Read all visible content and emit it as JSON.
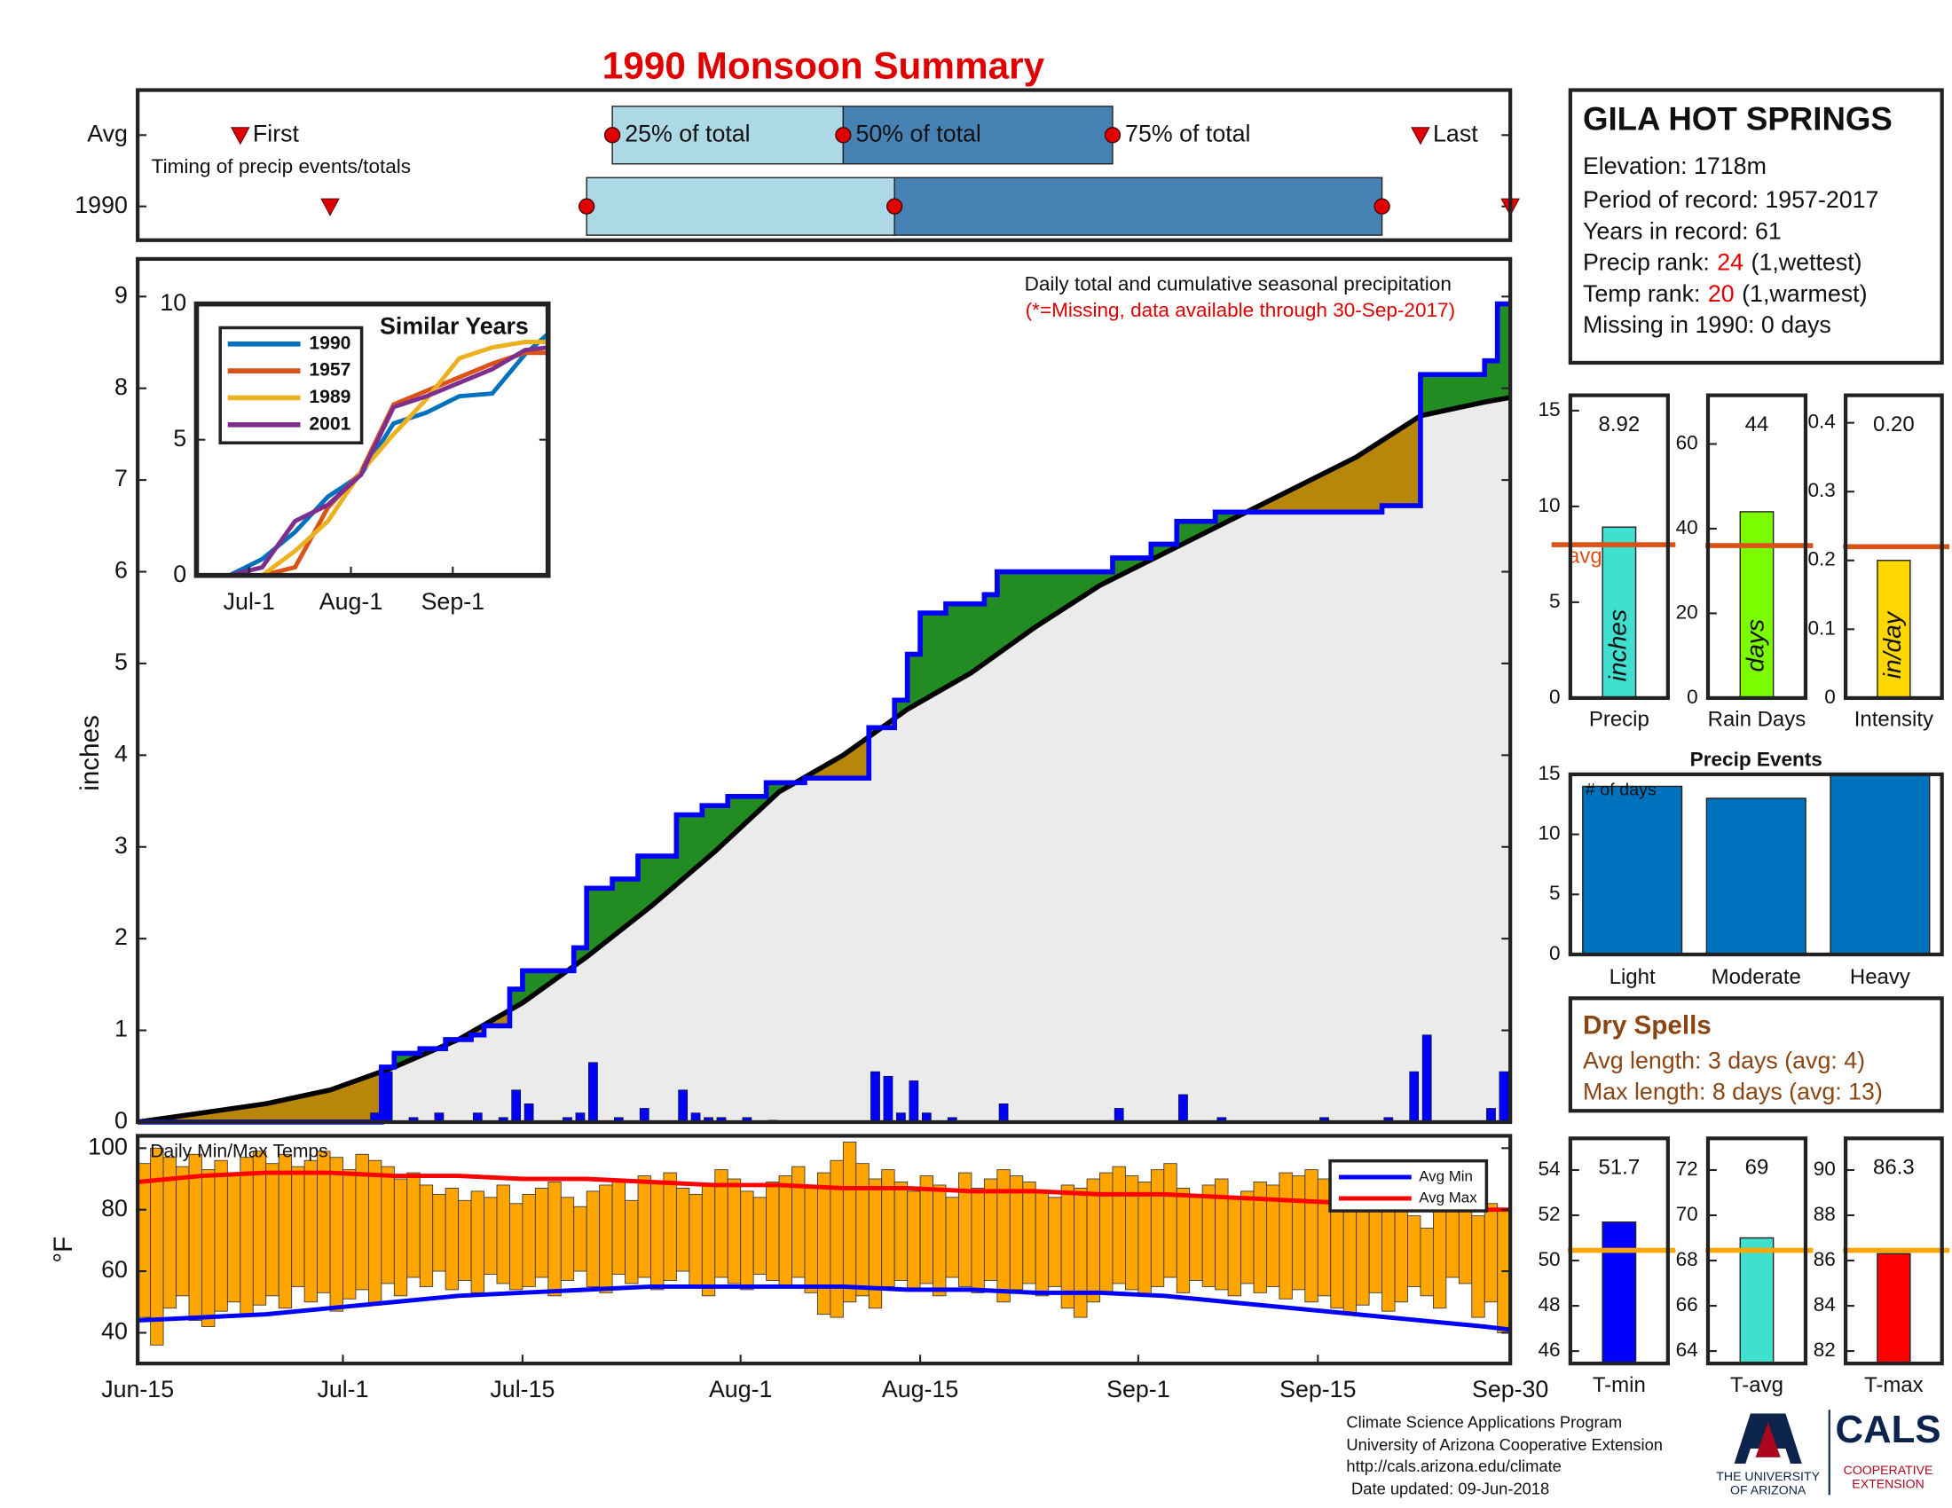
{
  "title": "1990 Monsoon Summary",
  "station": {
    "name": "GILA HOT SPRINGS",
    "elevation": "Elevation: 1718m",
    "period": "Period of record: 1957-2017",
    "years": "Years in record: 61",
    "precip_rank_label": "Precip rank:",
    "precip_rank": "24",
    "precip_rank_note": "(1,wettest)",
    "temp_rank_label": "Temp rank:",
    "temp_rank": "20",
    "temp_rank_note": "(1,warmest)",
    "missing": "Missing in 1990: 0 days"
  },
  "dry_spells": {
    "title": "Dry Spells",
    "avg_length": "Avg length: 3 days (avg: 4)",
    "max_length": "Max length: 8 days (avg: 13)"
  },
  "footer": {
    "lines": [
      "Climate Science Applications Program",
      "University of Arizona Cooperative Extension",
      "http://cals.arizona.edu/climate",
      "Date updated: 09-Jun-2018"
    ],
    "logo_university": [
      "THE UNIVERSITY",
      "OF ARIZONA"
    ],
    "logo_cals": "CALS",
    "logo_extension": [
      "COOPERATIVE",
      "EXTENSION"
    ]
  },
  "chart_data": [
    {
      "type": "timing",
      "annotation": "Timing of precip events/totals",
      "marker_labels": [
        "First",
        "25% of total",
        "50% of total",
        "75% of total",
        "Last"
      ],
      "series": [
        {
          "name": "Avg",
          "values": [
            8,
            37,
            55,
            76,
            100
          ]
        },
        {
          "name": "1990",
          "values": [
            15,
            35,
            59,
            97,
            107
          ]
        }
      ],
      "xlim": [
        0,
        107
      ],
      "colors": [
        "#add8e6",
        "#4682b4"
      ],
      "marker_color": "#e00000"
    },
    {
      "type": "cumulative_precip",
      "annotation": "Daily total and cumulative seasonal precipitation",
      "note": "(*=Missing, data available through 30-Sep-2017)",
      "ylabel": "inches",
      "xlim": [
        0,
        107
      ],
      "ylim": [
        0,
        9.41
      ],
      "yticks": [
        0,
        1,
        2,
        3,
        4,
        5,
        6,
        7,
        8,
        9
      ],
      "daily": {
        "color": "#0000ff",
        "x": [
          18,
          19,
          21,
          23,
          26,
          28,
          29,
          30,
          33,
          34,
          35,
          37,
          39,
          42,
          43,
          44,
          45,
          47,
          49,
          57,
          58,
          59,
          60,
          61,
          63,
          67,
          76,
          81,
          84,
          92,
          97,
          99,
          100,
          105,
          106
        ],
        "values": [
          0.1,
          0.55,
          0.05,
          0.1,
          0.1,
          0.05,
          0.35,
          0.2,
          0.05,
          0.1,
          0.65,
          0.05,
          0.15,
          0.35,
          0.1,
          0.05,
          0.05,
          0.05,
          0.02,
          0.55,
          0.5,
          0.1,
          0.45,
          0.1,
          0.05,
          0.2,
          0.15,
          0.3,
          0.05,
          0.05,
          0.05,
          0.55,
          0.95,
          0.15,
          0.55
        ]
      },
      "observed": {
        "color": "#0000ff",
        "x": [
          0,
          19,
          20,
          22,
          24,
          26,
          27,
          29,
          30,
          34,
          35,
          37,
          39,
          42,
          44,
          46,
          49,
          52,
          57,
          59,
          60,
          61,
          63,
          66,
          67,
          76,
          79,
          81,
          84,
          97,
          100,
          105,
          106
        ],
        "values": [
          0,
          0.6,
          0.75,
          0.8,
          0.9,
          0.95,
          1.05,
          1.45,
          1.65,
          1.9,
          2.55,
          2.65,
          2.9,
          3.35,
          3.45,
          3.55,
          3.7,
          3.75,
          4.3,
          4.6,
          5.1,
          5.55,
          5.65,
          5.75,
          6.0,
          6.15,
          6.3,
          6.55,
          6.65,
          6.72,
          8.15,
          8.3,
          8.92
        ]
      },
      "average": {
        "color": "#000000",
        "x": [
          0,
          5,
          10,
          15,
          20,
          25,
          30,
          35,
          40,
          45,
          50,
          55,
          60,
          65,
          70,
          75,
          80,
          85,
          90,
          95,
          100,
          105,
          107
        ],
        "values": [
          0,
          0.1,
          0.2,
          0.35,
          0.6,
          0.9,
          1.3,
          1.8,
          2.35,
          2.95,
          3.6,
          4.0,
          4.5,
          4.9,
          5.4,
          5.85,
          6.2,
          6.55,
          6.9,
          7.25,
          7.7,
          7.85,
          7.9
        ]
      },
      "colors": {
        "above": "#228b22",
        "below": "#b8860b",
        "base": "#ebebeb"
      }
    },
    {
      "type": "line",
      "title": "Similar Years",
      "x": [
        0,
        10,
        20,
        30,
        40,
        50,
        60,
        70,
        80,
        90,
        100,
        107
      ],
      "xlim": [
        0,
        107
      ],
      "ylim": [
        0,
        10
      ],
      "yticks": [
        0,
        5,
        10
      ],
      "xticks": [
        {
          "value": 16,
          "label": "Jul-1"
        },
        {
          "value": 47,
          "label": "Aug-1"
        },
        {
          "value": 78,
          "label": "Sep-1"
        }
      ],
      "series": [
        {
          "name": "1990",
          "color": "#0072bd",
          "values": [
            0,
            0,
            0.6,
            1.6,
            2.9,
            3.7,
            5.6,
            6.0,
            6.6,
            6.7,
            8.15,
            8.9
          ]
        },
        {
          "name": "1957",
          "color": "#d95319",
          "values": [
            0,
            0,
            0,
            0.3,
            2.5,
            3.8,
            6.3,
            6.8,
            7.3,
            7.8,
            8.2,
            8.2
          ]
        },
        {
          "name": "1989",
          "color": "#edb120",
          "values": [
            0,
            0,
            0,
            0.9,
            2.0,
            3.8,
            5.2,
            6.5,
            8.0,
            8.4,
            8.6,
            8.6
          ]
        },
        {
          "name": "2001",
          "color": "#7e2f8e",
          "values": [
            0,
            0,
            0.3,
            2.0,
            2.6,
            3.7,
            6.2,
            6.6,
            7.1,
            7.6,
            8.3,
            8.4
          ]
        }
      ]
    },
    {
      "type": "temp_range",
      "title": "Daily Min/Max Temps",
      "ylabel": "°F",
      "xlim": [
        0,
        107
      ],
      "ylim": [
        30,
        104
      ],
      "yticks": [
        40,
        60,
        80,
        100
      ],
      "xticks": [
        {
          "value": 0,
          "label": "Jun-15"
        },
        {
          "value": 16,
          "label": "Jul-1"
        },
        {
          "value": 30,
          "label": "Jul-15"
        },
        {
          "value": 47,
          "label": "Aug-1"
        },
        {
          "value": 61,
          "label": "Aug-15"
        },
        {
          "value": 78,
          "label": "Sep-1"
        },
        {
          "value": 92,
          "label": "Sep-15"
        },
        {
          "value": 107,
          "label": "Sep-30"
        }
      ],
      "bar_color": "#ffa500",
      "x": [
        0,
        1,
        2,
        3,
        4,
        5,
        6,
        7,
        8,
        9,
        10,
        11,
        12,
        13,
        14,
        15,
        16,
        17,
        18,
        19,
        20,
        21,
        22,
        23,
        24,
        25,
        26,
        27,
        28,
        29,
        30,
        31,
        32,
        33,
        34,
        35,
        36,
        37,
        38,
        39,
        40,
        41,
        42,
        43,
        44,
        45,
        46,
        47,
        48,
        49,
        50,
        51,
        52,
        53,
        54,
        55,
        56,
        57,
        58,
        59,
        60,
        61,
        62,
        63,
        64,
        65,
        66,
        67,
        68,
        69,
        70,
        71,
        72,
        73,
        74,
        75,
        76,
        77,
        78,
        79,
        80,
        81,
        82,
        83,
        84,
        85,
        86,
        87,
        88,
        89,
        90,
        91,
        92,
        93,
        94,
        95,
        96,
        97,
        98,
        99,
        100,
        101,
        102,
        103,
        104,
        105,
        106
      ],
      "max": {
        "values": [
          95,
          100,
          97,
          94,
          98,
          93,
          96,
          92,
          97,
          99,
          95,
          98,
          94,
          96,
          99,
          97,
          93,
          98,
          96,
          94,
          90,
          92,
          88,
          85,
          87,
          83,
          86,
          84,
          88,
          82,
          85,
          87,
          89,
          84,
          81,
          86,
          88,
          90,
          83,
          91,
          89,
          92,
          87,
          85,
          88,
          93,
          90,
          86,
          84,
          89,
          91,
          94,
          88,
          92,
          96,
          102,
          95,
          90,
          93,
          89,
          86,
          91,
          88,
          84,
          92,
          87,
          90,
          93,
          91,
          89,
          86,
          84,
          88,
          87,
          90,
          92,
          94,
          91,
          89,
          93,
          95,
          87,
          85,
          88,
          90,
          84,
          86,
          89,
          88,
          92,
          91,
          93,
          90,
          87,
          85,
          88,
          86,
          83,
          80,
          78,
          74,
          82,
          84,
          80,
          78,
          82,
          80
        ]
      },
      "min": {
        "values": [
          45,
          36,
          48,
          52,
          44,
          42,
          47,
          50,
          46,
          49,
          52,
          48,
          55,
          50,
          53,
          47,
          51,
          54,
          49,
          56,
          52,
          58,
          55,
          60,
          54,
          57,
          53,
          59,
          56,
          54,
          55,
          58,
          52,
          57,
          60,
          55,
          53,
          59,
          56,
          58,
          54,
          57,
          60,
          55,
          52,
          58,
          56,
          54,
          59,
          57,
          55,
          58,
          53,
          46,
          45,
          50,
          52,
          48,
          55,
          57,
          54,
          56,
          52,
          58,
          55,
          53,
          57,
          50,
          54,
          56,
          52,
          55,
          48,
          45,
          50,
          53,
          56,
          54,
          52,
          55,
          58,
          53,
          57,
          55,
          54,
          52,
          56,
          53,
          55,
          51,
          54,
          50,
          52,
          48,
          46,
          49,
          53,
          47,
          50,
          55,
          52,
          48,
          58,
          56,
          45,
          50,
          40
        ]
      },
      "series": [
        {
          "name": "Avg Min",
          "color": "#0000ff",
          "x": [
            0,
            5,
            10,
            15,
            20,
            25,
            30,
            35,
            40,
            45,
            50,
            55,
            60,
            65,
            70,
            75,
            80,
            85,
            90,
            95,
            100,
            105,
            107
          ],
          "values": [
            44,
            45,
            46,
            48,
            50,
            52,
            53,
            54,
            55,
            55,
            55,
            55,
            54,
            54,
            53,
            53,
            52,
            50,
            48,
            46,
            44,
            42,
            41
          ]
        },
        {
          "name": "Avg Max",
          "color": "#ff0000",
          "x": [
            0,
            5,
            10,
            15,
            20,
            25,
            30,
            35,
            40,
            45,
            50,
            55,
            60,
            65,
            70,
            75,
            80,
            85,
            90,
            95,
            100,
            105,
            107
          ],
          "values": [
            89,
            91,
            92,
            92,
            91,
            91,
            90,
            90,
            89,
            88,
            88,
            87,
            87,
            86,
            86,
            85,
            85,
            84,
            83,
            82,
            81,
            80,
            80
          ]
        }
      ]
    },
    {
      "type": "stat_bar",
      "categories": [
        "Precip"
      ],
      "values": [
        8.92
      ],
      "avg": 8.0,
      "avg_label": "avg",
      "unit_label": "inches",
      "color": "#40e0d0",
      "avg_color": "#d95319",
      "ylim": [
        0,
        15.8
      ],
      "yticks": [
        0,
        5,
        10,
        15
      ]
    },
    {
      "type": "stat_bar",
      "categories": [
        "Rain Days"
      ],
      "values": [
        44
      ],
      "avg": 36,
      "unit_label": "days",
      "color": "#7cfc00",
      "avg_color": "#d95319",
      "ylim": [
        0,
        71.5
      ],
      "yticks": [
        0,
        20,
        40,
        60
      ]
    },
    {
      "type": "stat_bar",
      "categories": [
        "Intensity"
      ],
      "values": [
        0.2
      ],
      "value_labels": [
        "0.20"
      ],
      "avg": 0.22,
      "unit_label": "in/day",
      "color": "#ffd700",
      "avg_color": "#d95319",
      "ylim": [
        0,
        0.44
      ],
      "yticks": [
        0,
        0.1,
        0.2,
        0.3,
        0.4
      ]
    },
    {
      "type": "bar",
      "title": "Precip Events",
      "annotation": "# of days",
      "categories": [
        "Light",
        "Moderate",
        "Heavy"
      ],
      "values": [
        14,
        13,
        15
      ],
      "color": "#0072bd",
      "ylim": [
        0,
        15
      ],
      "yticks": [
        0,
        5,
        10,
        15
      ]
    },
    {
      "type": "stat_bar",
      "categories": [
        "T-min"
      ],
      "values": [
        51.7
      ],
      "avg": 50.45,
      "color": "#0000ff",
      "avg_color": "#ffa500",
      "ylim": [
        45.45,
        55.4
      ],
      "yticks": [
        46,
        48,
        50,
        52,
        54
      ]
    },
    {
      "type": "stat_bar",
      "categories": [
        "T-avg"
      ],
      "values": [
        69
      ],
      "avg": 68.45,
      "color": "#40e0d0",
      "avg_color": "#ffa500",
      "ylim": [
        63.45,
        73.4
      ],
      "yticks": [
        64,
        66,
        68,
        70,
        72
      ]
    },
    {
      "type": "stat_bar",
      "categories": [
        "T-max"
      ],
      "values": [
        86.3
      ],
      "avg": 86.45,
      "color": "#ff0000",
      "avg_color": "#ffa500",
      "ylim": [
        81.45,
        91.4
      ],
      "yticks": [
        82,
        84,
        86,
        88,
        90
      ]
    }
  ]
}
